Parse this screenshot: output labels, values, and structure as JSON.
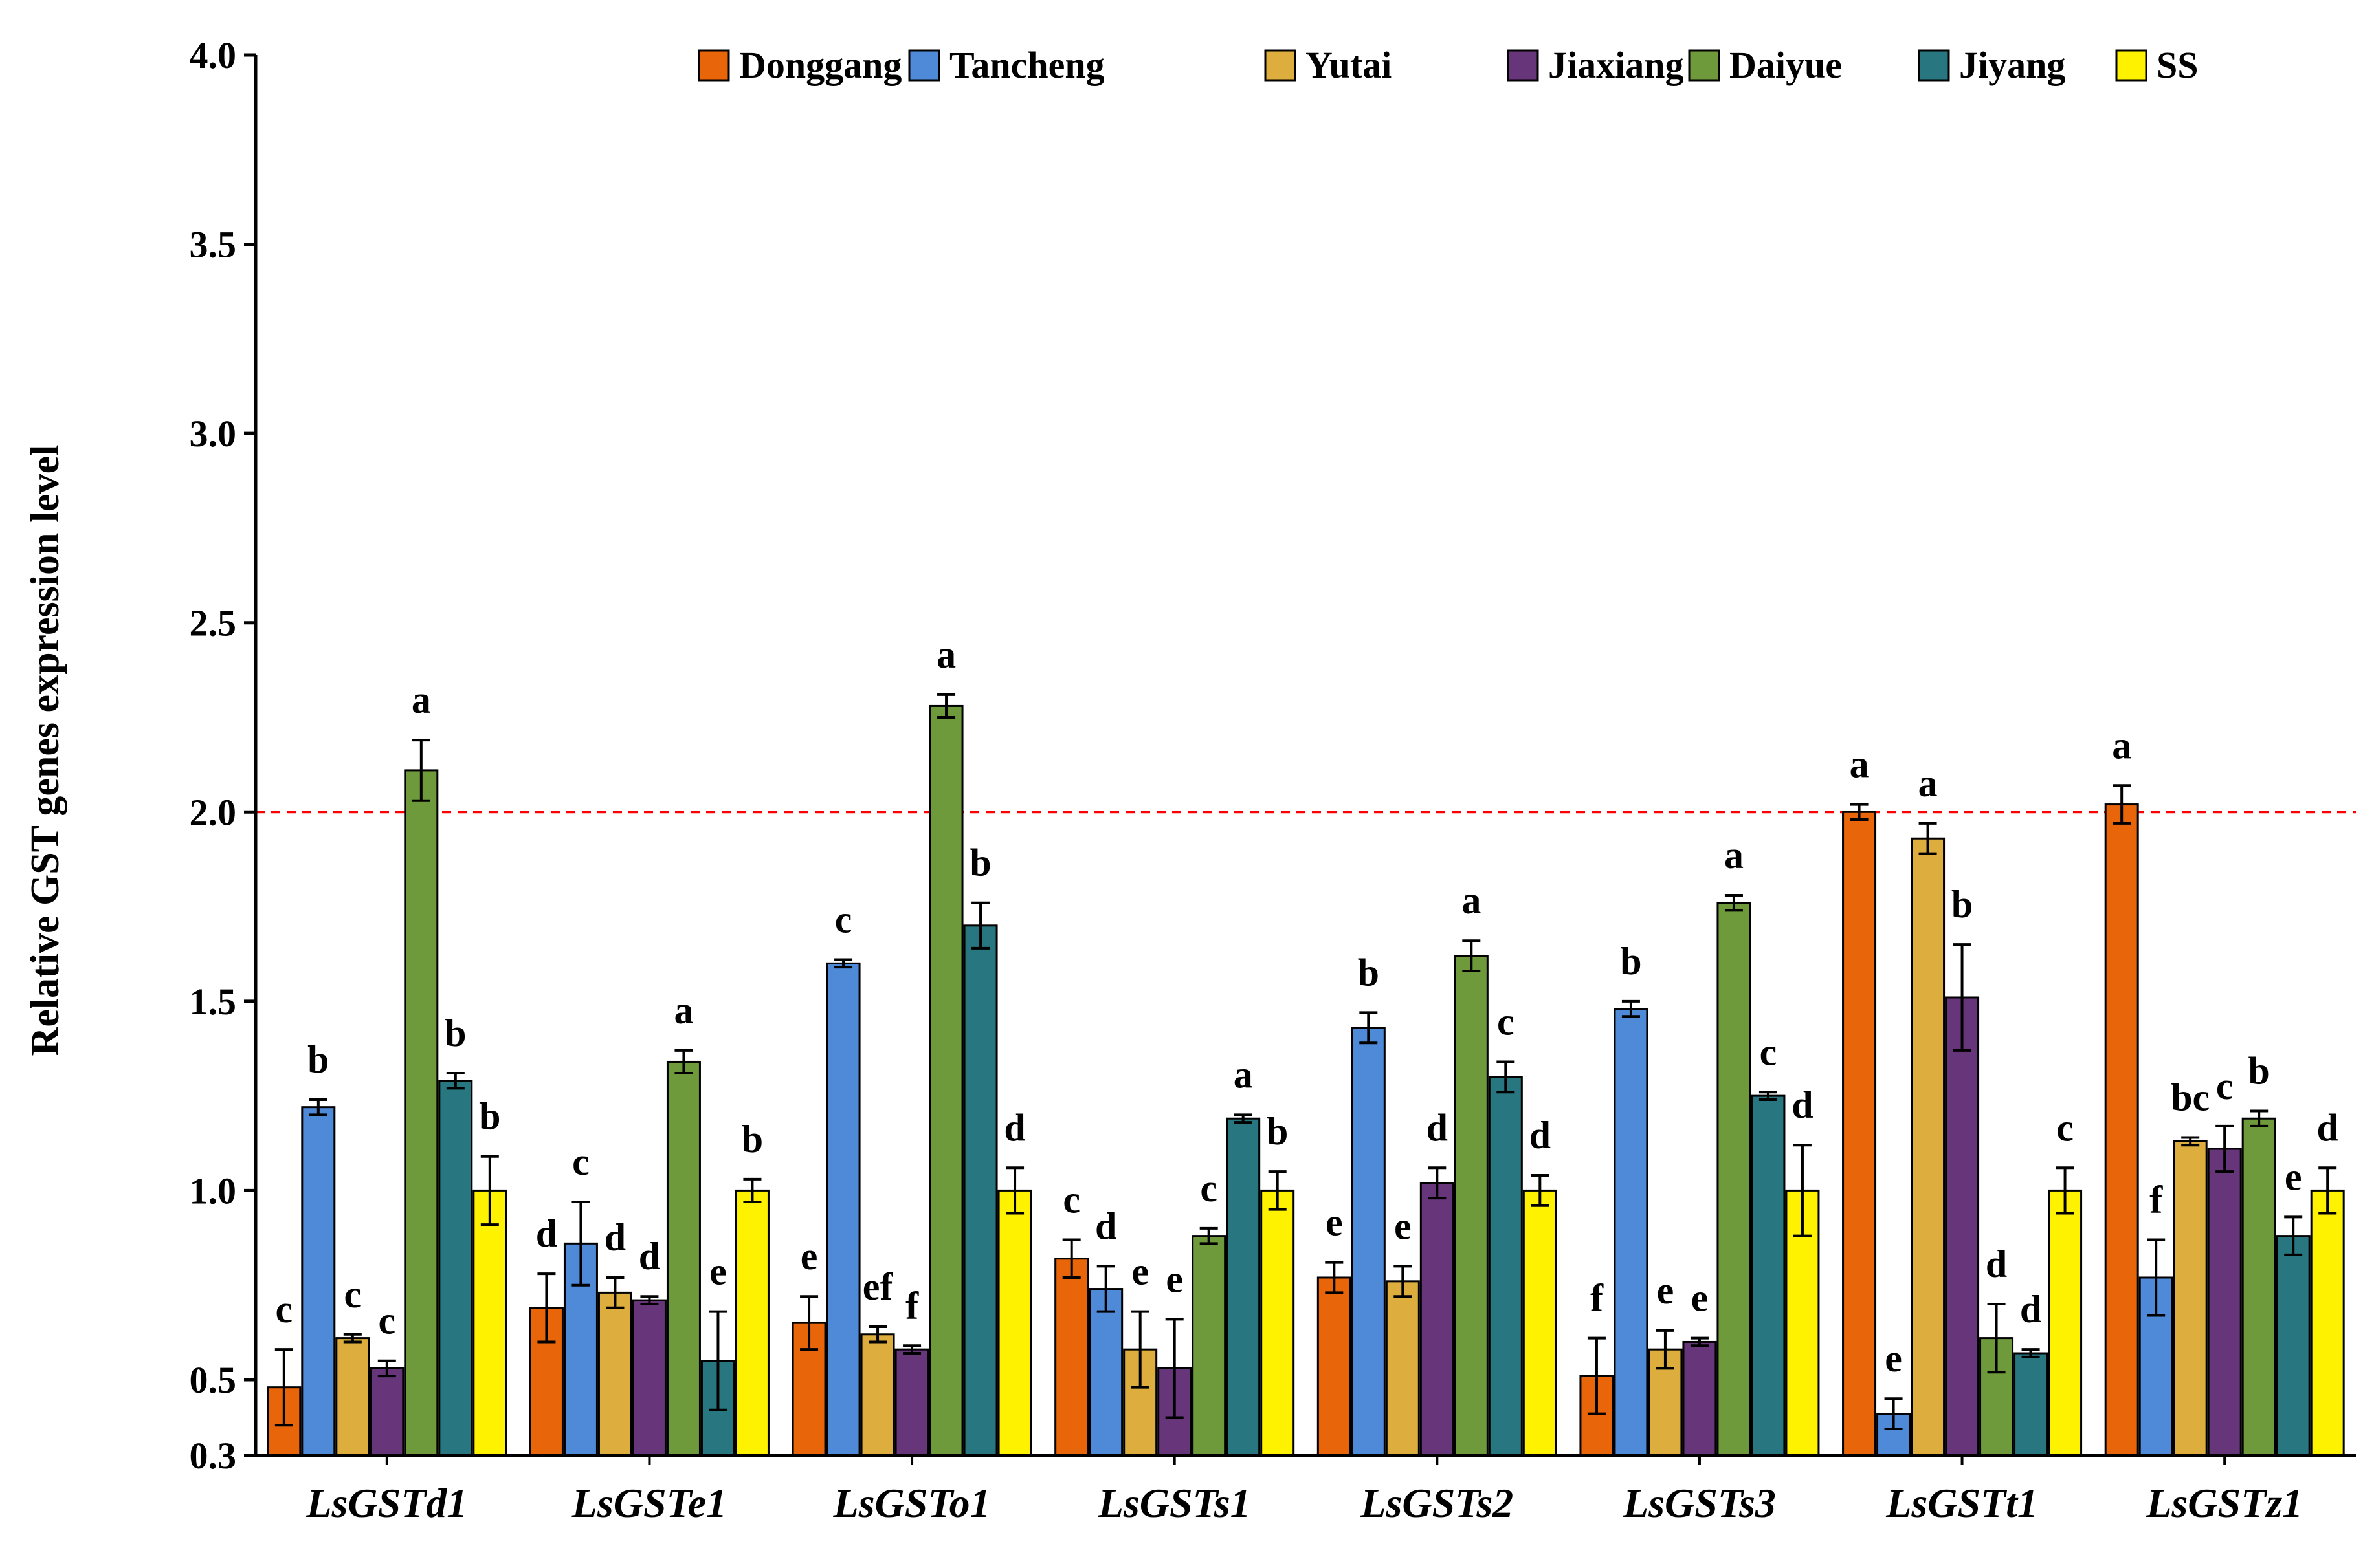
{
  "chart_data": {
    "type": "bar",
    "title": "",
    "xlabel": "",
    "ylabel": "Relative GST genes expression level",
    "ylim": [
      0.3,
      4.0
    ],
    "yticks": [
      "4.0",
      "3.5",
      "3.0",
      "2.5",
      "2.0",
      "1.5",
      "1.0",
      "0.5",
      "0.3"
    ],
    "ytick_values": [
      4.0,
      3.5,
      3.0,
      2.5,
      2.0,
      1.5,
      1.0,
      0.5,
      0.3
    ],
    "reference_line": 2.0,
    "legend_position": "top-right",
    "categories": [
      "LsGSTd1",
      "LsGSTe1",
      "LsGSTo1",
      "LsGSTs1",
      "LsGSTs2",
      "LsGSTs3",
      "LsGSTt1",
      "LsGSTz1"
    ],
    "series": [
      {
        "name": "Donggang",
        "color": "#E8650A",
        "values": [
          0.48,
          0.69,
          0.65,
          0.82,
          0.77,
          0.51,
          2.0,
          2.02
        ],
        "errors": [
          0.1,
          0.09,
          0.07,
          0.05,
          0.04,
          0.1,
          0.02,
          0.05
        ],
        "labels": [
          "c",
          "d",
          "e",
          "c",
          "e",
          "f",
          "a",
          "a"
        ]
      },
      {
        "name": "Tancheng",
        "color": "#4F8AD8",
        "values": [
          1.22,
          0.86,
          1.6,
          0.74,
          1.43,
          1.48,
          0.41,
          0.77
        ],
        "errors": [
          0.02,
          0.11,
          0.01,
          0.06,
          0.04,
          0.02,
          0.04,
          0.1
        ],
        "labels": [
          "b",
          "c",
          "c",
          "d",
          "b",
          "b",
          "e",
          "f"
        ]
      },
      {
        "name": "Yutai",
        "color": "#DDAE3D",
        "values": [
          0.61,
          0.73,
          0.62,
          0.58,
          0.76,
          0.58,
          1.93,
          1.13
        ],
        "errors": [
          0.01,
          0.04,
          0.02,
          0.1,
          0.04,
          0.05,
          0.04,
          0.01
        ],
        "labels": [
          "c",
          "d",
          "ef",
          "e",
          "e",
          "e",
          "a",
          "bc"
        ]
      },
      {
        "name": "Jiaxiang",
        "color": "#66357A",
        "values": [
          0.53,
          0.71,
          0.58,
          0.53,
          1.02,
          0.6,
          1.51,
          1.11
        ],
        "errors": [
          0.02,
          0.01,
          0.01,
          0.13,
          0.04,
          0.01,
          0.14,
          0.06
        ],
        "labels": [
          "c",
          "d",
          "f",
          "e",
          "d",
          "e",
          "b",
          "c"
        ]
      },
      {
        "name": "Daiyue",
        "color": "#6E9A3C",
        "values": [
          2.11,
          1.34,
          2.28,
          0.88,
          1.62,
          1.76,
          0.61,
          1.19
        ],
        "errors": [
          0.08,
          0.03,
          0.03,
          0.02,
          0.04,
          0.02,
          0.09,
          0.02
        ],
        "labels": [
          "a",
          "a",
          "a",
          "c",
          "a",
          "a",
          "d",
          "b"
        ]
      },
      {
        "name": "Jiyang",
        "color": "#277680",
        "values": [
          1.29,
          0.55,
          1.7,
          1.19,
          1.3,
          1.25,
          0.57,
          0.88
        ],
        "errors": [
          0.02,
          0.13,
          0.06,
          0.01,
          0.04,
          0.01,
          0.01,
          0.05
        ],
        "labels": [
          "b",
          "e",
          "b",
          "a",
          "c",
          "c",
          "d",
          "e"
        ]
      },
      {
        "name": "SS",
        "color": "#FFF200",
        "values": [
          1.0,
          1.0,
          1.0,
          1.0,
          1.0,
          1.0,
          1.0,
          1.0
        ],
        "errors": [
          0.09,
          0.03,
          0.06,
          0.05,
          0.04,
          0.12,
          0.06,
          0.06
        ],
        "labels": [
          "b",
          "b",
          "d",
          "b",
          "d",
          "d",
          "c",
          "d"
        ]
      }
    ]
  }
}
